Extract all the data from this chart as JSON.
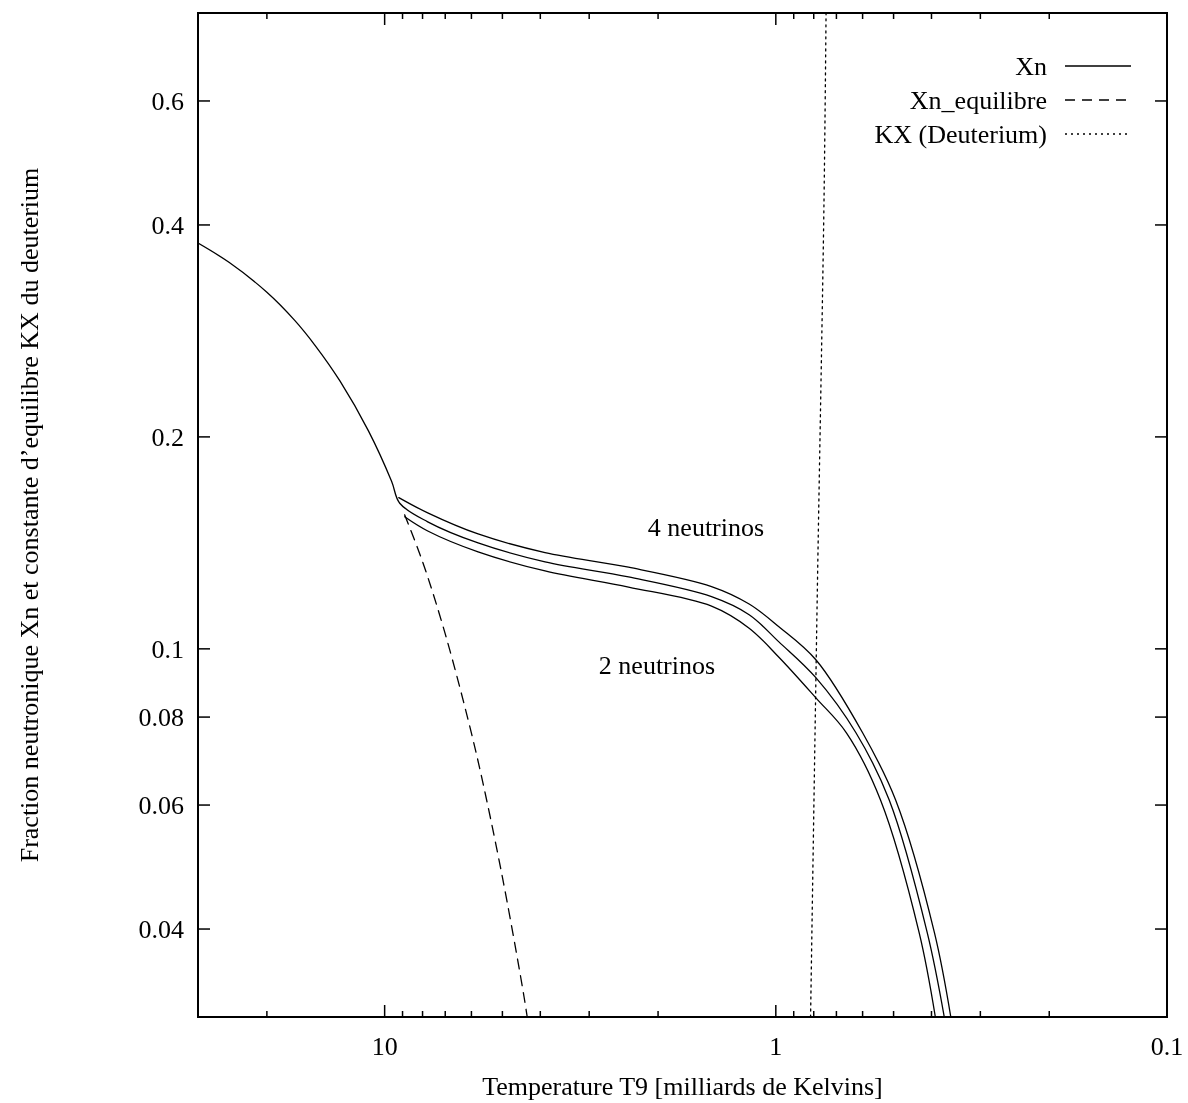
{
  "chart_data": {
    "type": "line",
    "xlabel": "Temperature T9 [milliards de Kelvins]",
    "ylabel": "Fraction neutronique Xn et constante d’equilibre KX du deuterium",
    "log": "xy",
    "xlim": [
      30,
      0.1
    ],
    "ylim": [
      0.03,
      0.8
    ],
    "xticks": [
      {
        "value": 20,
        "label": null
      },
      10,
      {
        "value": 9,
        "label": null
      },
      {
        "value": 8,
        "label": null
      },
      {
        "value": 7,
        "label": null
      },
      {
        "value": 6,
        "label": null
      },
      {
        "value": 5,
        "label": null
      },
      {
        "value": 4,
        "label": null
      },
      {
        "value": 3,
        "label": null
      },
      {
        "value": 2,
        "label": null
      },
      1,
      {
        "value": 0.9,
        "label": null
      },
      {
        "value": 0.8,
        "label": null
      },
      {
        "value": 0.7,
        "label": null
      },
      {
        "value": 0.6,
        "label": null
      },
      {
        "value": 0.5,
        "label": null
      },
      {
        "value": 0.4,
        "label": null
      },
      {
        "value": 0.3,
        "label": null
      },
      {
        "value": 0.2,
        "label": null
      },
      0.1
    ],
    "yticks": [
      0.04,
      0.06,
      0.08,
      0.1,
      0.2,
      0.4,
      0.6
    ],
    "legend": "top right",
    "series": [
      {
        "name": "Xn",
        "color": "#000000",
        "line_style": "solid",
        "x": [
          30,
          25,
          20,
          17,
          15,
          13,
          11,
          9.6,
          9.15,
          7.76,
          5.77,
          3.89,
          2.38,
          1.46,
          1.17,
          0.982,
          0.79,
          0.624,
          0.513,
          0.41,
          0.371
        ],
        "values": [
          0.377,
          0.354,
          0.321,
          0.293,
          0.269,
          0.24,
          0.204,
          0.173,
          0.161,
          0.1515,
          0.1414,
          0.1329,
          0.1265,
          0.1186,
          0.1118,
          0.1023,
          0.091,
          0.076,
          0.061,
          0.0395,
          0.03
        ]
      },
      {
        "color": "#000000",
        "line_style": "solid",
        "x": [
          9.2,
          7.76,
          5.77,
          3.89,
          2.38,
          1.46,
          1.17,
          0.982,
          0.79,
          0.6,
          0.494,
          0.393,
          0.357
        ],
        "values": [
          0.164,
          0.156,
          0.1456,
          0.137,
          0.1306,
          0.1226,
          0.1158,
          0.1075,
          0.0965,
          0.076,
          0.061,
          0.0395,
          0.03
        ]
      },
      {
        "color": "#000000",
        "line_style": "solid",
        "x": [
          8.89,
          7.76,
          5.77,
          3.89,
          2.38,
          1.46,
          1.17,
          0.982,
          0.79,
          0.66,
          0.54,
          0.43,
          0.391
        ],
        "values": [
          0.154,
          0.147,
          0.1373,
          0.129,
          0.1224,
          0.115,
          0.107,
          0.0973,
          0.0852,
          0.076,
          0.061,
          0.0395,
          0.03
        ]
      },
      {
        "name": "Xn_equilibre",
        "color": "#000000",
        "line_style": "dashed",
        "x": [
          8.89,
          8,
          7,
          6,
          5.5,
          5,
          4.6,
          4.4,
          4.32
        ],
        "values": [
          0.155,
          0.133,
          0.105,
          0.0759,
          0.0614,
          0.0474,
          0.0369,
          0.032,
          0.03
        ]
      },
      {
        "name": "KX (Deuterium)",
        "color": "#000000",
        "line_style": "dotted",
        "x": [
          0.744,
          0.753,
          0.784,
          0.815
        ],
        "values": [
          0.8,
          0.434,
          0.117,
          0.03
        ]
      }
    ],
    "annotations": [
      "4 neutrinos",
      "2 neutrinos"
    ]
  }
}
